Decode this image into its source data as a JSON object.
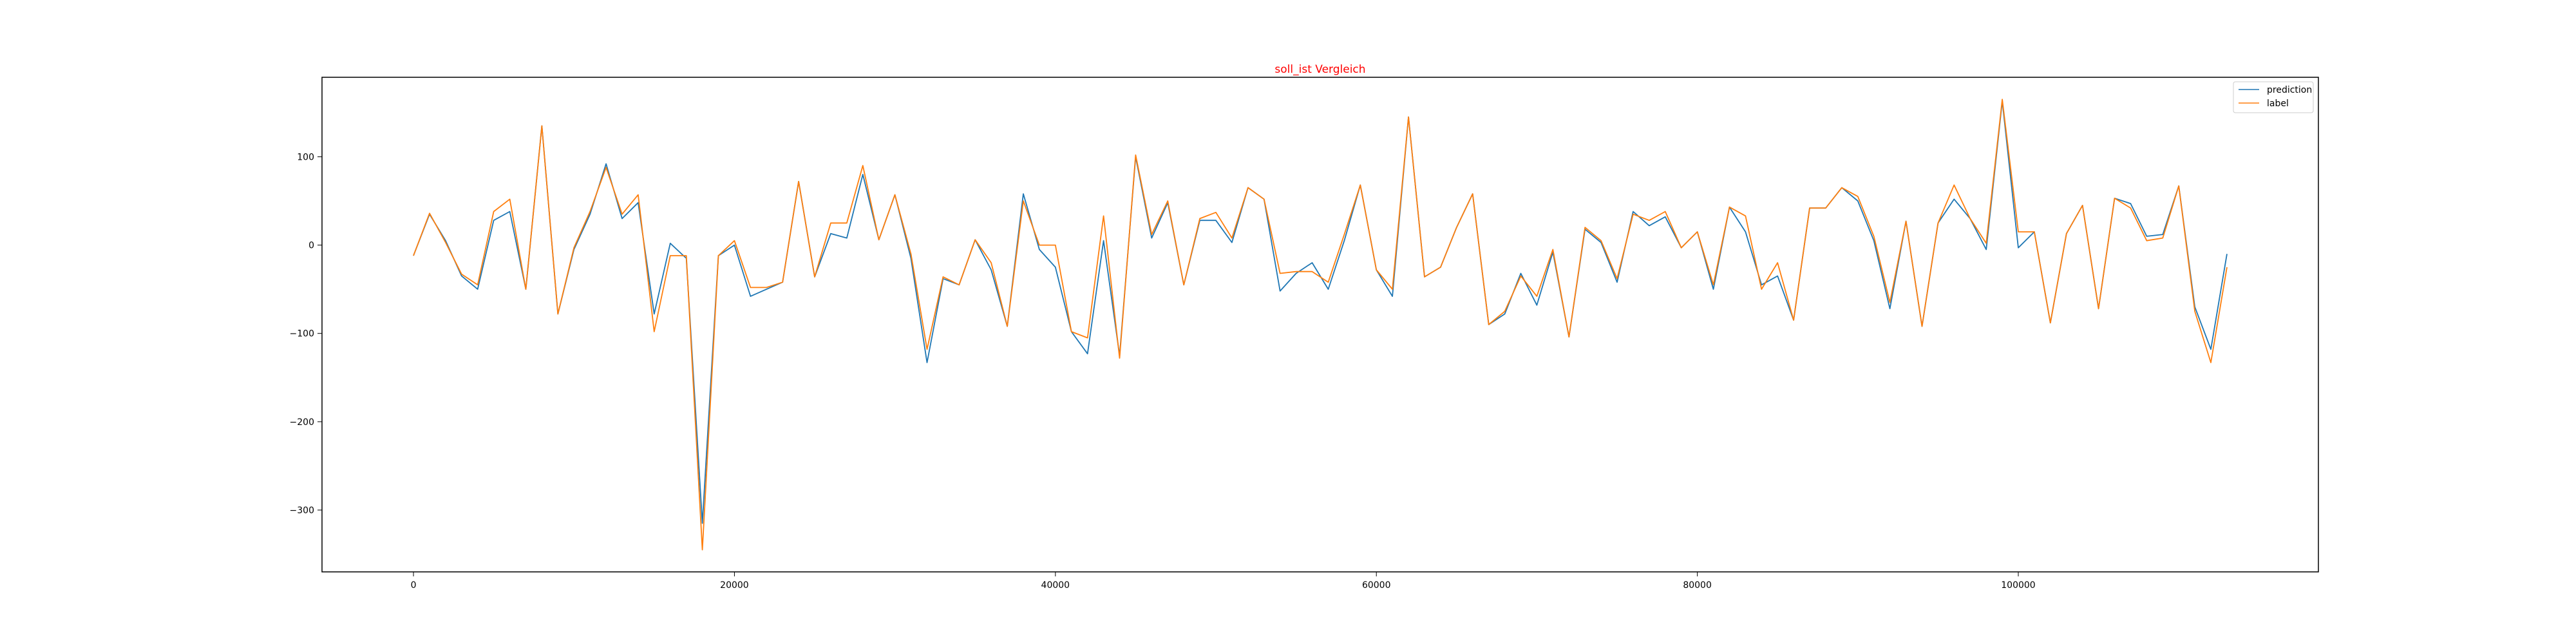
{
  "chart_data": {
    "type": "line",
    "title": "soll_ist Vergleich",
    "title_color": "#ff0000",
    "xlabel": "",
    "ylabel": "",
    "xlim": [
      -5700,
      118700
    ],
    "ylim": [
      -370,
      190
    ],
    "x_ticks": [
      0,
      20000,
      40000,
      60000,
      80000,
      100000
    ],
    "y_ticks": [
      -300,
      -200,
      -100,
      0,
      100
    ],
    "grid": false,
    "legend_position": "upper right",
    "series": [
      {
        "name": "prediction",
        "color": "#1f77b4",
        "values": [
          -12,
          35,
          5,
          -35,
          -50,
          28,
          38,
          -50,
          135,
          -78,
          -5,
          35,
          92,
          30,
          48,
          -78,
          2,
          -15,
          -315,
          -12,
          0,
          -58,
          -50,
          -42,
          72,
          -36,
          13,
          8,
          80,
          6,
          57,
          -15,
          -133,
          -38,
          -45,
          6,
          -28,
          -92,
          58,
          -5,
          -25,
          -98,
          -123,
          5,
          -125,
          100,
          8,
          48,
          -45,
          28,
          28,
          3,
          65,
          52,
          -52,
          -32,
          -20,
          -50,
          5,
          68,
          -28,
          -58,
          145,
          -36,
          -25,
          20,
          58,
          -90,
          -78,
          -32,
          -68,
          -8,
          -104,
          18,
          3,
          -42,
          38,
          22,
          32,
          -3,
          15,
          -50,
          43,
          15,
          -45,
          -35,
          -85,
          42,
          42,
          65,
          50,
          5,
          -72,
          27,
          -92,
          25,
          52,
          30,
          -5,
          163,
          -3,
          15,
          -88,
          13,
          45,
          -72,
          53,
          47,
          10,
          12,
          67,
          -70,
          -118,
          -10
        ],
        "x": [
          0,
          1000,
          2000,
          3000,
          4000,
          5000,
          6000,
          7000,
          8000,
          9000,
          10000,
          11000,
          12000,
          13000,
          14000,
          15000,
          16000,
          17000,
          18000,
          19000,
          20000,
          21000,
          22000,
          23000,
          24000,
          25000,
          26000,
          27000,
          28000,
          29000,
          30000,
          31000,
          32000,
          33000,
          34000,
          35000,
          36000,
          37000,
          38000,
          39000,
          40000,
          41000,
          42000,
          43000,
          44000,
          45000,
          46000,
          47000,
          48000,
          49000,
          50000,
          51000,
          52000,
          53000,
          54000,
          55000,
          56000,
          57000,
          58000,
          59000,
          60000,
          61000,
          62000,
          63000,
          64000,
          65000,
          66000,
          67000,
          68000,
          69000,
          70000,
          71000,
          72000,
          73000,
          74000,
          75000,
          76000,
          77000,
          78000,
          79000,
          80000,
          81000,
          82000,
          83000,
          84000,
          85000,
          86000,
          87000,
          88000,
          89000,
          90000,
          91000,
          92000,
          93000,
          94000,
          95000,
          96000,
          97000,
          98000,
          99000,
          100000,
          101000,
          102000,
          103000,
          104000,
          105000,
          106000,
          107000,
          108000,
          109000,
          110000,
          111000,
          112000,
          113000
        ]
      },
      {
        "name": "label",
        "color": "#ff7f0e",
        "values": [
          -12,
          36,
          3,
          -33,
          -45,
          38,
          52,
          -50,
          135,
          -78,
          -3,
          38,
          88,
          35,
          57,
          -98,
          -12,
          -12,
          -345,
          -12,
          5,
          -48,
          -48,
          -42,
          72,
          -36,
          25,
          25,
          90,
          6,
          57,
          -10,
          -118,
          -36,
          -45,
          6,
          -20,
          -92,
          50,
          0,
          0,
          -98,
          -105,
          33,
          -128,
          102,
          12,
          50,
          -45,
          30,
          37,
          8,
          65,
          52,
          -32,
          -30,
          -30,
          -42,
          12,
          68,
          -28,
          -50,
          145,
          -36,
          -25,
          20,
          58,
          -90,
          -75,
          -35,
          -58,
          -5,
          -104,
          20,
          5,
          -38,
          35,
          28,
          38,
          -3,
          15,
          -45,
          43,
          33,
          -50,
          -20,
          -85,
          42,
          42,
          65,
          55,
          10,
          -65,
          27,
          -92,
          25,
          68,
          30,
          2,
          165,
          15,
          15,
          -88,
          13,
          45,
          -72,
          53,
          42,
          5,
          8,
          67,
          -75,
          -133,
          -25
        ],
        "x": [
          0,
          1000,
          2000,
          3000,
          4000,
          5000,
          6000,
          7000,
          8000,
          9000,
          10000,
          11000,
          12000,
          13000,
          14000,
          15000,
          16000,
          17000,
          18000,
          19000,
          20000,
          21000,
          22000,
          23000,
          24000,
          25000,
          26000,
          27000,
          28000,
          29000,
          30000,
          31000,
          32000,
          33000,
          34000,
          35000,
          36000,
          37000,
          38000,
          39000,
          40000,
          41000,
          42000,
          43000,
          44000,
          45000,
          46000,
          47000,
          48000,
          49000,
          50000,
          51000,
          52000,
          53000,
          54000,
          55000,
          56000,
          57000,
          58000,
          59000,
          60000,
          61000,
          62000,
          63000,
          64000,
          65000,
          66000,
          67000,
          68000,
          69000,
          70000,
          71000,
          72000,
          73000,
          74000,
          75000,
          76000,
          77000,
          78000,
          79000,
          80000,
          81000,
          82000,
          83000,
          84000,
          85000,
          86000,
          87000,
          88000,
          89000,
          90000,
          91000,
          92000,
          93000,
          94000,
          95000,
          96000,
          97000,
          98000,
          99000,
          100000,
          101000,
          102000,
          103000,
          104000,
          105000,
          106000,
          107000,
          108000,
          109000,
          110000,
          111000,
          112000,
          113000
        ]
      }
    ]
  }
}
